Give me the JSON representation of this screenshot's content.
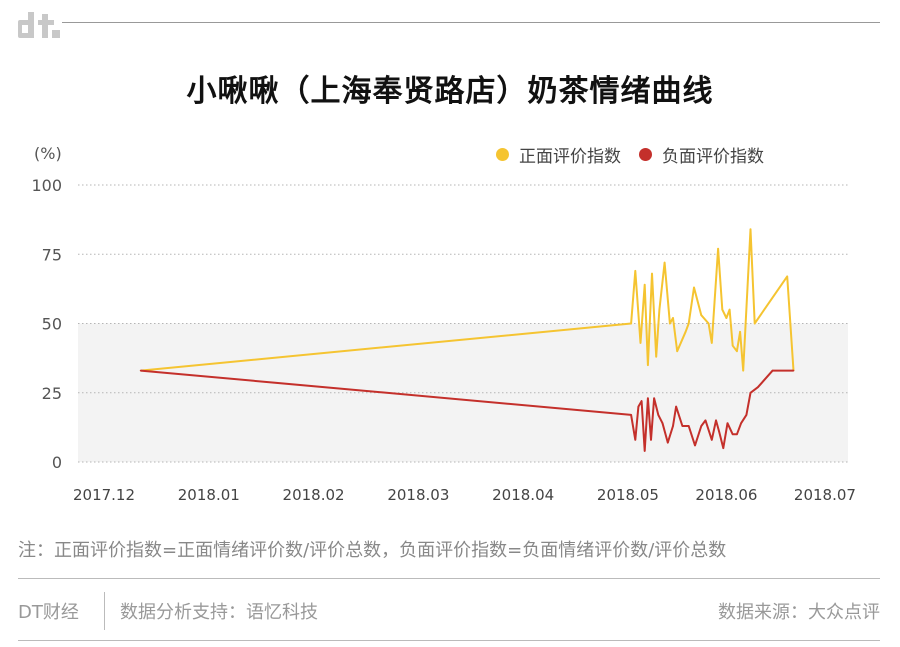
{
  "brand": {
    "logo_text": "dt",
    "logo_color": "#c8c8c8"
  },
  "title": "小啾啾（上海奉贤路店）奶茶情绪曲线",
  "unit_label": "(%)",
  "legend": [
    {
      "label": "正面评价指数",
      "color": "#f5c431"
    },
    {
      "label": "负面评价指数",
      "color": "#c4302b"
    }
  ],
  "note": "注：正面评价指数=正面情绪评价数/评价总数，负面评价指数=负面情绪评价数/评价总数",
  "footer": {
    "brand": "DT财经",
    "support": "数据分析支持：语忆科技",
    "source": "数据来源：大众点评"
  },
  "chart_data": {
    "type": "line",
    "title": "小啾啾（上海奉贤路店）奶茶情绪曲线",
    "xlabel": "",
    "ylabel": "(%)",
    "ylim": [
      0,
      100
    ],
    "yticks": [
      0,
      25,
      50,
      75,
      100
    ],
    "xlim": [
      0,
      7.1
    ],
    "x_ticks": [
      {
        "label": "2017.12",
        "x": 0
      },
      {
        "label": "2018.01",
        "x": 1
      },
      {
        "label": "2018.02",
        "x": 2
      },
      {
        "label": "2018.03",
        "x": 3
      },
      {
        "label": "2018.04",
        "x": 4
      },
      {
        "label": "2018.05",
        "x": 5
      },
      {
        "label": "2018.06",
        "x": 5.94
      },
      {
        "label": "2018.07",
        "x": 6.88
      }
    ],
    "shaded_band": [
      0,
      50
    ],
    "series": [
      {
        "name": "正面评价指数",
        "color": "#f5c431",
        "points": [
          [
            0.35,
            33
          ],
          [
            5.03,
            50
          ],
          [
            5.07,
            69
          ],
          [
            5.12,
            43
          ],
          [
            5.16,
            64
          ],
          [
            5.19,
            35
          ],
          [
            5.23,
            68
          ],
          [
            5.27,
            38
          ],
          [
            5.3,
            55
          ],
          [
            5.35,
            72
          ],
          [
            5.4,
            50
          ],
          [
            5.43,
            52
          ],
          [
            5.47,
            40
          ],
          [
            5.55,
            47
          ],
          [
            5.58,
            50
          ],
          [
            5.63,
            63
          ],
          [
            5.7,
            53
          ],
          [
            5.77,
            50
          ],
          [
            5.8,
            43
          ],
          [
            5.86,
            77
          ],
          [
            5.9,
            55
          ],
          [
            5.94,
            52
          ],
          [
            5.97,
            55
          ],
          [
            6.0,
            42
          ],
          [
            6.04,
            40
          ],
          [
            6.07,
            47
          ],
          [
            6.1,
            33
          ],
          [
            6.17,
            84
          ],
          [
            6.21,
            50
          ],
          [
            6.52,
            67
          ],
          [
            6.58,
            33
          ]
        ]
      },
      {
        "name": "负面评价指数",
        "color": "#c4302b",
        "points": [
          [
            0.35,
            33
          ],
          [
            5.03,
            17
          ],
          [
            5.07,
            8
          ],
          [
            5.1,
            20
          ],
          [
            5.13,
            22
          ],
          [
            5.16,
            4
          ],
          [
            5.19,
            23
          ],
          [
            5.22,
            8
          ],
          [
            5.25,
            23
          ],
          [
            5.29,
            17
          ],
          [
            5.33,
            14
          ],
          [
            5.38,
            7
          ],
          [
            5.43,
            13
          ],
          [
            5.46,
            20
          ],
          [
            5.52,
            13
          ],
          [
            5.58,
            13
          ],
          [
            5.64,
            6
          ],
          [
            5.7,
            13
          ],
          [
            5.74,
            15
          ],
          [
            5.8,
            8
          ],
          [
            5.84,
            15
          ],
          [
            5.87,
            11
          ],
          [
            5.91,
            5
          ],
          [
            5.95,
            14
          ],
          [
            6.0,
            10
          ],
          [
            6.04,
            10
          ],
          [
            6.08,
            14
          ],
          [
            6.13,
            17
          ],
          [
            6.17,
            25
          ],
          [
            6.24,
            27
          ],
          [
            6.38,
            33
          ],
          [
            6.58,
            33
          ]
        ]
      }
    ]
  }
}
